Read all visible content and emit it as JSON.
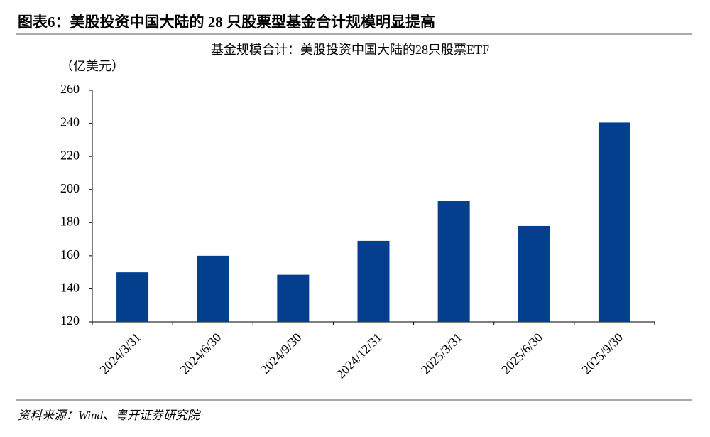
{
  "header": {
    "title": "图表6：美股投资中国大陆的 28 只股票型基金合计规模明显提高"
  },
  "chart_data": {
    "type": "bar",
    "title": "基金规模合计：美股投资中国大陆的28只股票ETF",
    "y_label": "（亿美元）",
    "categories": [
      "2024/3/31",
      "2024/6/30",
      "2024/9/30",
      "2024/12/31",
      "2025/3/31",
      "2025/6/30",
      "2025/9/30"
    ],
    "values": [
      150,
      160,
      148.5,
      169,
      193,
      178,
      240.5
    ],
    "color": "#033f8c",
    "ylim": [
      120,
      260
    ],
    "yticks": [
      120,
      140,
      160,
      180,
      200,
      220,
      240,
      260
    ],
    "grid": false
  },
  "source": "资料来源：Wind、粤开证券研究院"
}
